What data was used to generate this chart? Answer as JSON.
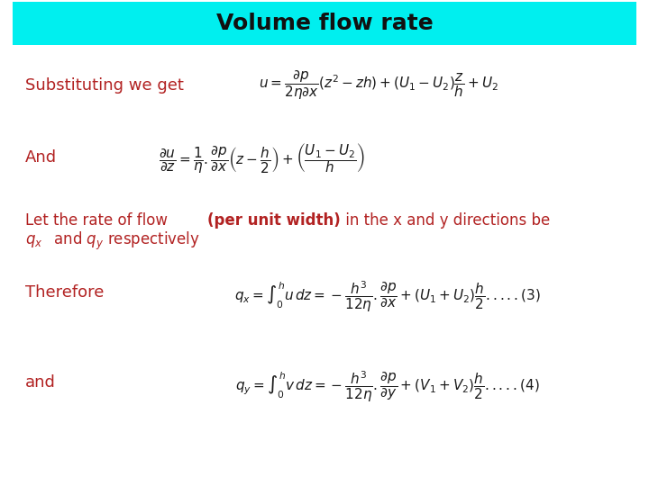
{
  "title": "Volume flow rate",
  "title_bg_color": "#00EFEF",
  "title_fontsize": 18,
  "title_fontweight": "bold",
  "bg_color": "#FFFFFF",
  "text_color": "#B22222",
  "eq_color": "#1a1a1a",
  "subst_label": "Substituting we get",
  "and_label": "And",
  "therefore_label": "Therefore",
  "and2_label": "and",
  "label_fontsize": 13,
  "eq_fontsize": 11,
  "body_fontsize": 12
}
